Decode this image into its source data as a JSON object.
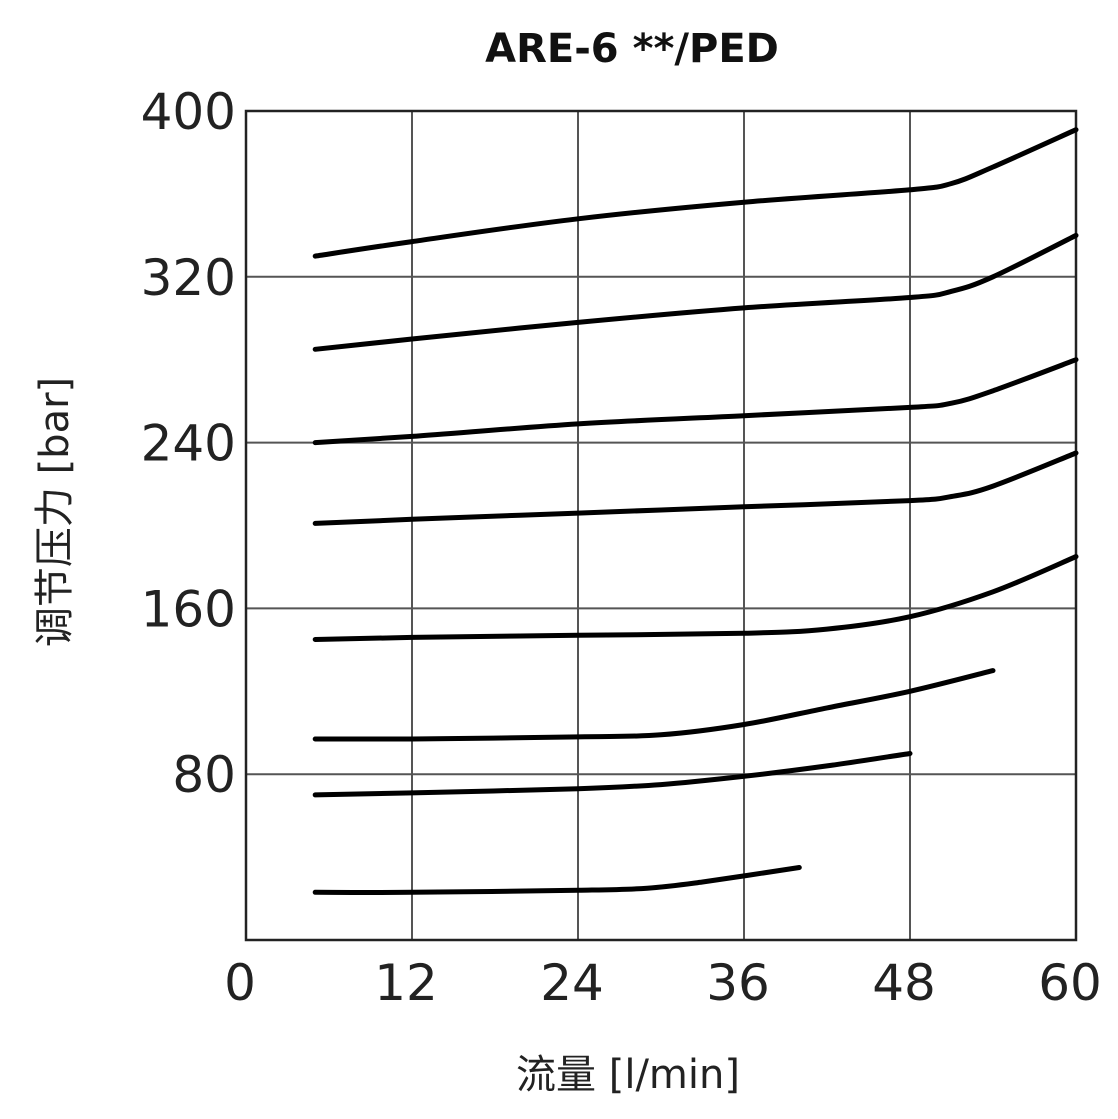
{
  "chart_data": {
    "type": "line",
    "title": "ARE-6 **/PED",
    "xlabel": "流量 [l/min]",
    "ylabel": "调节压力 [bar]",
    "xlim": [
      0,
      60
    ],
    "ylim": [
      0,
      400
    ],
    "x_ticks": [
      "0",
      "12",
      "24",
      "36",
      "48",
      "60"
    ],
    "y_ticks": [
      "80",
      "160",
      "240",
      "320",
      "400"
    ],
    "grid": true,
    "series": [
      {
        "x": [
          5,
          12,
          24,
          36,
          48,
          51,
          54,
          60
        ],
        "values": [
          330,
          337,
          348,
          356,
          362,
          365,
          373,
          391
        ]
      },
      {
        "x": [
          5,
          12,
          24,
          36,
          48,
          51,
          54,
          60
        ],
        "values": [
          285,
          290,
          298,
          305,
          310,
          313,
          320,
          340
        ]
      },
      {
        "x": [
          5,
          12,
          24,
          36,
          48,
          51,
          54,
          60
        ],
        "values": [
          240,
          243,
          249,
          253,
          257,
          259,
          265,
          280
        ]
      },
      {
        "x": [
          5,
          12,
          24,
          36,
          48,
          51,
          54,
          60
        ],
        "values": [
          201,
          203,
          206,
          209,
          212,
          214,
          219,
          235
        ]
      },
      {
        "x": [
          5,
          12,
          24,
          36,
          42,
          48,
          54,
          60
        ],
        "values": [
          145,
          146,
          147,
          148,
          150,
          156,
          168,
          185
        ]
      },
      {
        "x": [
          5,
          12,
          24,
          30,
          36,
          42,
          48,
          54
        ],
        "values": [
          97,
          97,
          98,
          99,
          104,
          112,
          120,
          130
        ]
      },
      {
        "x": [
          5,
          12,
          24,
          30,
          36,
          42,
          48
        ],
        "values": [
          70,
          71,
          73,
          75,
          79,
          84,
          90
        ]
      },
      {
        "x": [
          5,
          12,
          24,
          29,
          33,
          40
        ],
        "values": [
          23,
          23,
          24,
          25,
          28,
          35
        ]
      }
    ]
  }
}
